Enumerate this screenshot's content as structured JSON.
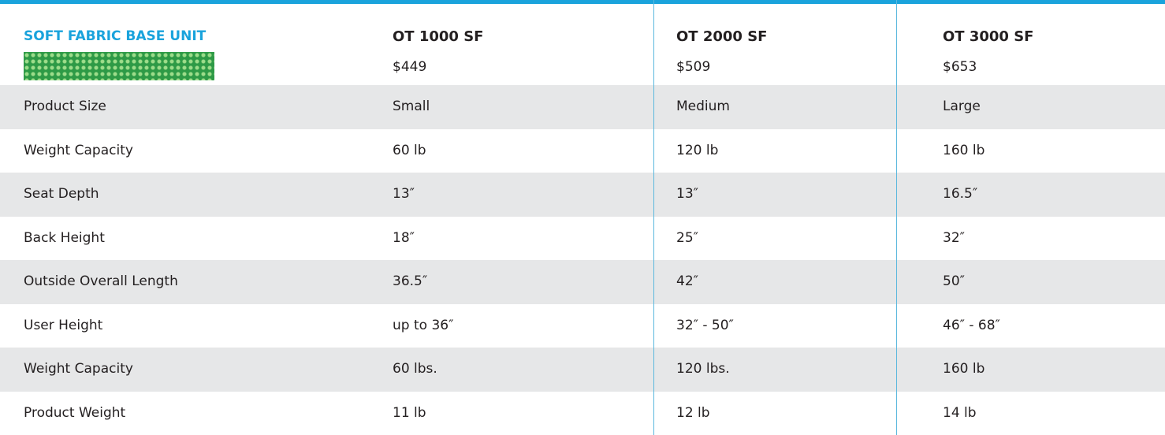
{
  "header": {
    "title": "SOFT FABRIC BASE UNIT",
    "models": [
      {
        "name": "OT 1000 SF",
        "price": "$449"
      },
      {
        "name": "OT 2000 SF",
        "price": "$509"
      },
      {
        "name": "OT 3000 SF",
        "price": "$653"
      }
    ]
  },
  "table": {
    "rows": [
      [
        "Product Size",
        "Small",
        "Medium",
        "Large"
      ],
      [
        "Weight Capacity",
        "60 lb",
        "120 lb",
        "160 lb"
      ],
      [
        "Seat Depth",
        "13″",
        "13″",
        "16.5″"
      ],
      [
        "Back Height",
        "18″",
        "25″",
        "32″"
      ],
      [
        "Outside Overall Length",
        "36.5″",
        "42″",
        "50″"
      ],
      [
        "User Height",
        "up to 36″",
        "32″ - 50″",
        "46″ - 68″"
      ],
      [
        "Weight Capacity",
        "60 lbs.",
        "120 lbs.",
        "160 lb"
      ],
      [
        "Product Weight",
        "11 lb",
        "12 lb",
        "14 lb"
      ]
    ]
  }
}
